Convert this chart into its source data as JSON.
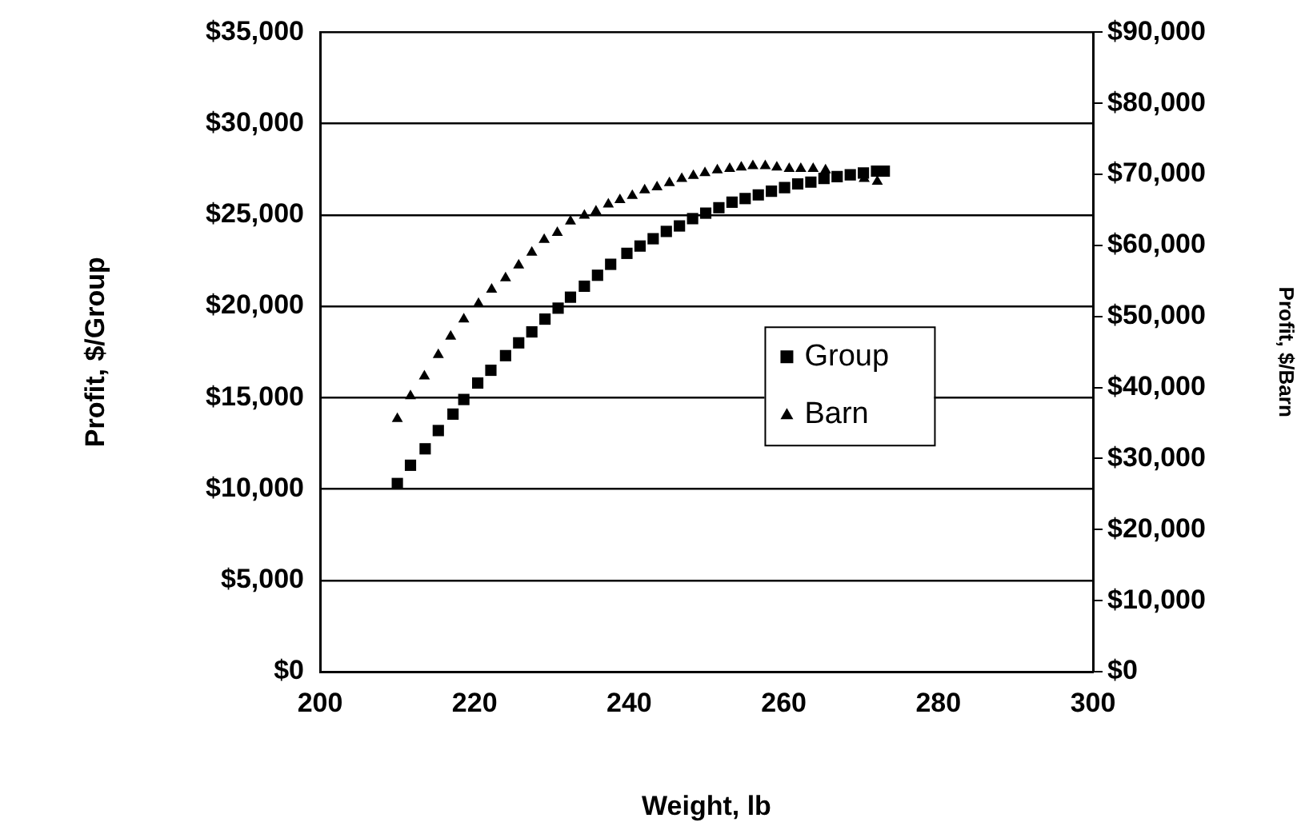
{
  "chart_data": {
    "type": "scatter",
    "xlabel": "Weight, lb",
    "ylabel": "Profit, $/Group",
    "y2label": "Profit, $/Barn",
    "xlim": [
      200,
      300
    ],
    "xticks": [
      200,
      220,
      240,
      260,
      280,
      300
    ],
    "ylim": [
      0,
      35000
    ],
    "yticks": [
      {
        "value": 0,
        "label": "$0"
      },
      {
        "value": 5000,
        "label": "$5,000"
      },
      {
        "value": 10000,
        "label": "$10,000"
      },
      {
        "value": 15000,
        "label": "$15,000"
      },
      {
        "value": 20000,
        "label": "$20,000"
      },
      {
        "value": 25000,
        "label": "$25,000"
      },
      {
        "value": 30000,
        "label": "$30,000"
      },
      {
        "value": 35000,
        "label": "$35,000"
      }
    ],
    "y2lim": [
      0,
      90000
    ],
    "y2ticks": [
      {
        "value": 0,
        "label": "$0"
      },
      {
        "value": 10000,
        "label": "$10,000"
      },
      {
        "value": 20000,
        "label": "$20,000"
      },
      {
        "value": 30000,
        "label": "$30,000"
      },
      {
        "value": 40000,
        "label": "$40,000"
      },
      {
        "value": 50000,
        "label": "$50,000"
      },
      {
        "value": 60000,
        "label": "$60,000"
      },
      {
        "value": 70000,
        "label": "$70,000"
      },
      {
        "value": 80000,
        "label": "$80,000"
      },
      {
        "value": 90000,
        "label": "$90,000"
      }
    ],
    "grid": "y",
    "legend": "right",
    "series": [
      {
        "name": "Group",
        "color": "#000000",
        "marker": "square",
        "x": [
          210.0,
          211.7,
          213.6,
          215.3,
          217.2,
          218.6,
          220.4,
          222.1,
          224.0,
          225.7,
          227.4,
          229.1,
          230.8,
          232.4,
          234.2,
          235.9,
          237.6,
          239.7,
          241.4,
          243.1,
          244.8,
          246.5,
          248.2,
          249.9,
          251.6,
          253.3,
          255.0,
          256.7,
          258.4,
          260.1,
          261.8,
          263.5,
          265.2,
          266.9,
          268.6,
          270.3,
          272.0,
          273.0
        ],
        "values": [
          10300,
          11300,
          12200,
          13200,
          14100,
          14900,
          15800,
          16500,
          17300,
          18000,
          18600,
          19300,
          19900,
          20500,
          21100,
          21700,
          22300,
          22900,
          23300,
          23700,
          24100,
          24400,
          24800,
          25100,
          25400,
          25700,
          25900,
          26100,
          26300,
          26500,
          26700,
          26800,
          27000,
          27100,
          27200,
          27300,
          27400,
          27400
        ]
      },
      {
        "name": "Barn",
        "color": "#000000",
        "marker": "triangle",
        "axis": "y2",
        "x": [
          210.0,
          211.7,
          213.5,
          215.3,
          216.9,
          218.6,
          220.5,
          222.2,
          224.0,
          225.7,
          227.4,
          229.0,
          230.7,
          232.4,
          234.2,
          235.7,
          237.3,
          238.8,
          240.4,
          242.0,
          243.6,
          245.2,
          246.8,
          248.3,
          249.8,
          251.4,
          253.0,
          254.5,
          256.0,
          257.6,
          259.1,
          260.7,
          262.2,
          263.8,
          265.4,
          266.9,
          268.7,
          270.4,
          272.1
        ],
        "values": [
          35600,
          38800,
          41600,
          44600,
          47200,
          49600,
          51800,
          53800,
          55400,
          57200,
          59000,
          60800,
          61800,
          63400,
          64200,
          64800,
          65800,
          66400,
          67000,
          67800,
          68200,
          68800,
          69400,
          69800,
          70200,
          70600,
          70800,
          71000,
          71200,
          71200,
          71000,
          70800,
          70800,
          70800,
          70600,
          null,
          null,
          69400,
          69000
        ]
      }
    ]
  }
}
